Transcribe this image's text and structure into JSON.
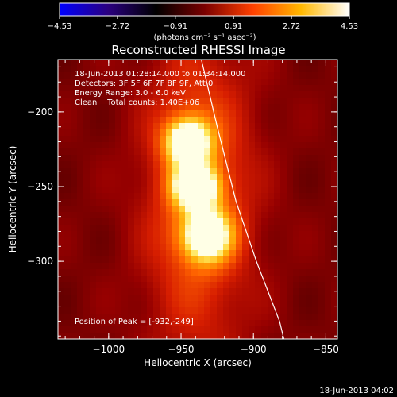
{
  "chart_data": {
    "type": "heatmap",
    "title": "Reconstructed RHESSI Image",
    "xlabel": "Heliocentric X (arcsec)",
    "ylabel": "Heliocentric Y (arcsec)",
    "xlim": [
      -1035,
      -842
    ],
    "ylim": [
      -352,
      -165
    ],
    "x_ticks": [
      -1000,
      -950,
      -900,
      -850
    ],
    "x_tick_labels": [
      "−1000",
      "−950",
      "−900",
      "−850"
    ],
    "y_ticks": [
      -200,
      -250,
      -300
    ],
    "y_tick_labels": [
      "−200",
      "−250",
      "−300"
    ],
    "colorbar": {
      "range": [
        -4.53,
        4.53
      ],
      "tick_values": [
        -4.53,
        -2.72,
        -0.91,
        0.91,
        2.72,
        4.53
      ],
      "tick_labels": [
        "−4.53",
        "−2.72",
        "−0.91",
        "0.91",
        "2.72",
        "4.53"
      ],
      "label": "(photons cm⁻² s⁻¹ asec⁻²)",
      "colors": [
        "#0000ff",
        "#2a0080",
        "#000000",
        "#7a0000",
        "#ff4000",
        "#ffb800",
        "#ffffff"
      ]
    },
    "sources": [
      {
        "x": -945,
        "y": -220,
        "sx": 11,
        "sy": 11,
        "amp": 1.0
      },
      {
        "x": -940,
        "y": -250,
        "sx": 11,
        "sy": 10,
        "amp": 1.0
      },
      {
        "x": -932,
        "y": -283,
        "sx": 12,
        "sy": 12,
        "amp": 0.95
      }
    ],
    "limb_points": [
      [
        -936,
        -165
      ],
      [
        -925,
        -210
      ],
      [
        -912,
        -260
      ],
      [
        -898,
        -300
      ],
      [
        -882,
        -340
      ],
      [
        -879,
        -352
      ]
    ],
    "annotations": [
      "18-Jun-2013 01:28:14.000 to 01:34:14.000",
      "Detectors: 3F 5F 6F 7F 8F 9F, Att 0",
      "Energy Range: 3.0 - 6.0 keV",
      "Clean    Total counts: 1.40E+06"
    ],
    "peak_label": "Position of Peak = [-932,-249]",
    "timestamp": "18-Jun-2013 04:02"
  }
}
